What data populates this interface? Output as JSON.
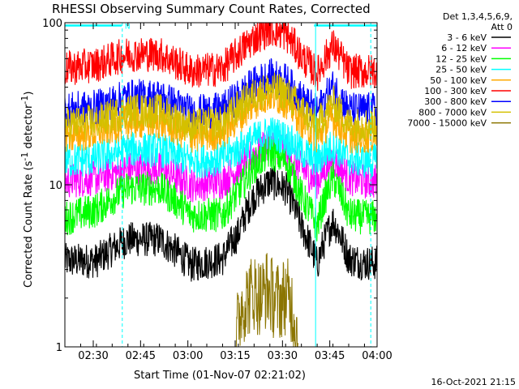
{
  "chart_data": {
    "type": "line",
    "title": "RHESSI Observing Summary Count Rates, Corrected",
    "xlabel": "Start Time (01-Nov-07 02:21:02)",
    "ylabel_main": "Corrected Count Rate (s",
    "ylabel_sup1": "-1",
    "ylabel_mid": " detector",
    "ylabel_sup2": "-1",
    "ylabel_end": ")",
    "yscale": "log",
    "ylim": [
      1,
      100
    ],
    "xlim_minutes": [
      0,
      99
    ],
    "x_tick_labels": [
      "02:30",
      "02:45",
      "03:00",
      "03:15",
      "03:30",
      "03:45",
      "04:00"
    ],
    "y_tick_labels": [
      "1",
      "10",
      "100"
    ],
    "legend_header": [
      "Det 1,3,4,5,6,9,",
      "Att 0"
    ],
    "legend_position": "right",
    "timestamp": "16-Oct-2021 21:15",
    "attenuator_marker": "N",
    "grid": false,
    "series": [
      {
        "name": "3 - 6 keV",
        "color": "#000000",
        "x_minutes": [
          0,
          10,
          20,
          30,
          40,
          50,
          55,
          60,
          65,
          70,
          75,
          80,
          85,
          90,
          95,
          99
        ],
        "values": [
          3.4,
          3.4,
          4.6,
          4.6,
          3.2,
          3.5,
          5.0,
          8.5,
          10.5,
          9.5,
          5.5,
          3.2,
          6.0,
          3.5,
          3.3,
          3.3
        ]
      },
      {
        "name": "6 - 12 keV",
        "color": "#ff00ff",
        "x_minutes": [
          0,
          10,
          20,
          30,
          40,
          50,
          55,
          60,
          65,
          70,
          75,
          80,
          85,
          90,
          95,
          99
        ],
        "values": [
          10.5,
          11.0,
          12.5,
          12.5,
          10.0,
          10.5,
          12.5,
          15.5,
          18.0,
          16.0,
          12.5,
          10.5,
          14.5,
          11.0,
          10.5,
          10.5
        ]
      },
      {
        "name": "12 - 25 keV",
        "color": "#00ff00",
        "x_minutes": [
          0,
          10,
          20,
          30,
          40,
          50,
          55,
          60,
          65,
          70,
          75,
          80,
          85,
          90,
          95,
          99
        ],
        "values": [
          6.2,
          7.0,
          9.5,
          9.5,
          6.5,
          6.5,
          9.0,
          13.0,
          16.0,
          14.0,
          8.5,
          5.5,
          11.0,
          6.5,
          6.3,
          6.3
        ]
      },
      {
        "name": "25 - 50 keV",
        "color": "#00ffff",
        "x_minutes": [
          0,
          10,
          20,
          30,
          40,
          50,
          55,
          60,
          65,
          70,
          75,
          80,
          85,
          90,
          95,
          99
        ],
        "values": [
          14.0,
          14.5,
          16.5,
          16.5,
          14.0,
          14.5,
          16.5,
          19.0,
          21.0,
          19.5,
          16.0,
          14.0,
          17.5,
          14.5,
          14.0,
          14.0
        ]
      },
      {
        "name": "50 - 100 keV",
        "color": "#ffaa00",
        "x_minutes": [
          0,
          10,
          20,
          30,
          40,
          50,
          55,
          60,
          65,
          70,
          75,
          80,
          85,
          90,
          95,
          99
        ],
        "values": [
          20.0,
          21.0,
          24.5,
          24.5,
          20.0,
          21.0,
          26.0,
          32.0,
          36.0,
          33.0,
          25.0,
          19.5,
          26.0,
          20.0,
          20.0,
          20.0
        ]
      },
      {
        "name": "100 - 300 keV",
        "color": "#ff0000",
        "x_minutes": [
          0,
          10,
          20,
          30,
          40,
          50,
          55,
          60,
          65,
          70,
          75,
          80,
          85,
          90,
          95,
          99
        ],
        "values": [
          52.0,
          55.0,
          64.0,
          64.0,
          50.0,
          52.0,
          65.0,
          80.0,
          92.0,
          85.0,
          62.0,
          48.0,
          72.0,
          50.0,
          50.0,
          50.0
        ]
      },
      {
        "name": "300 - 800 keV",
        "color": "#0000ff",
        "x_minutes": [
          0,
          10,
          20,
          30,
          40,
          50,
          55,
          60,
          65,
          70,
          75,
          80,
          85,
          90,
          95,
          99
        ],
        "values": [
          29.0,
          30.0,
          35.0,
          35.0,
          28.0,
          29.0,
          35.0,
          42.0,
          47.0,
          44.0,
          34.0,
          28.0,
          40.0,
          29.0,
          29.0,
          29.0
        ]
      },
      {
        "name": "800 - 7000 keV",
        "color": "#d4c000",
        "x_minutes": [
          0,
          10,
          20,
          30,
          40,
          50,
          55,
          60,
          65,
          70,
          75,
          80,
          85,
          90,
          95,
          99
        ],
        "values": [
          23.5,
          24.5,
          28.5,
          28.5,
          23.0,
          24.0,
          30.0,
          36.0,
          39.0,
          37.0,
          29.0,
          23.0,
          32.0,
          23.5,
          23.5,
          23.5
        ]
      },
      {
        "name": "7000 - 15000 keV",
        "color": "#8b7500",
        "x_minutes": [
          54,
          56,
          58,
          60,
          62,
          64,
          66,
          68,
          70,
          72,
          74
        ],
        "values": [
          1.0,
          1.8,
          2.0,
          2.2,
          2.0,
          2.3,
          2.0,
          1.9,
          2.1,
          1.8,
          1.0
        ]
      }
    ]
  }
}
